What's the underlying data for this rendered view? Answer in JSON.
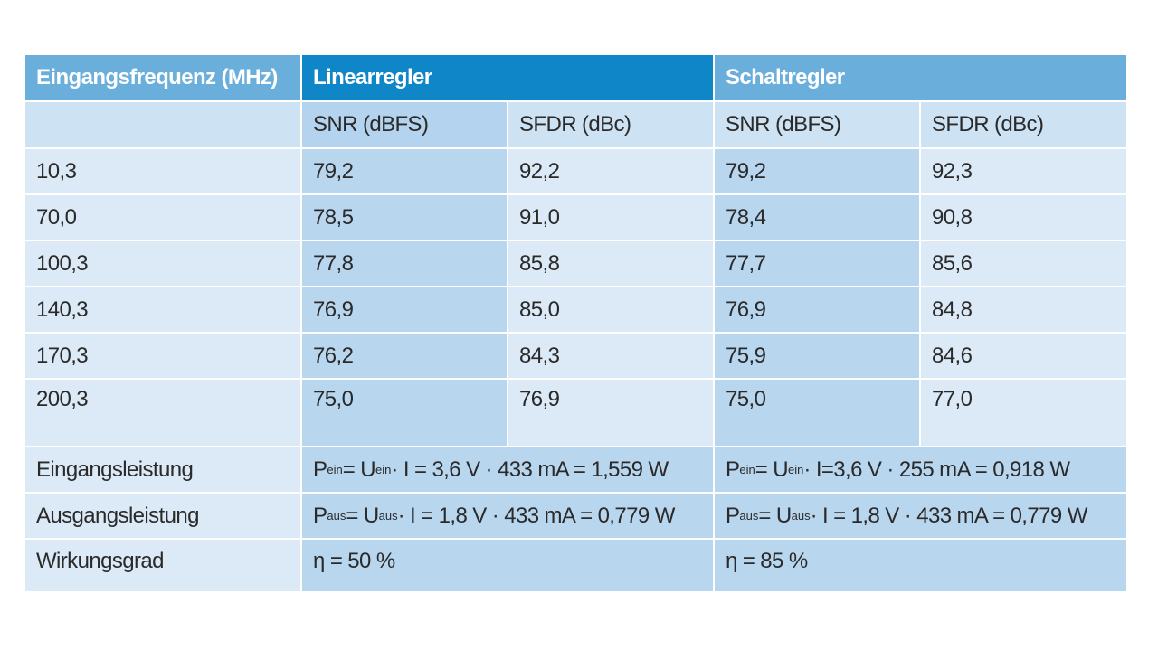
{
  "table": {
    "header": {
      "col1": "Eingangsfrequenz (MHz)",
      "group_linear": "Linearregler",
      "group_schalt": "Schaltregler"
    },
    "subheader": [
      "",
      "SNR (dBFS)",
      "SFDR (dBc)",
      "SNR (dBFS)",
      "SFDR (dBc)"
    ],
    "rows": [
      [
        "10,3",
        "79,2",
        "92,2",
        "79,2",
        "92,3"
      ],
      [
        "70,0",
        "78,5",
        "91,0",
        "78,4",
        "90,8"
      ],
      [
        "100,3",
        "77,8",
        "85,8",
        "77,7",
        "85,6"
      ],
      [
        "140,3",
        "76,9",
        "85,0",
        "76,9",
        "84,8"
      ],
      [
        "170,3",
        "76,2",
        "84,3",
        "75,9",
        "84,6"
      ],
      [
        "200,3",
        "75,0",
        "76,9",
        "75,0",
        "77,0"
      ]
    ],
    "power": {
      "eingang": {
        "label": "Eingangsleistung",
        "linear": {
          "p": "P",
          "p_sub": "ein",
          "u": " = U",
          "u_sub": "ein",
          "rest": " · I = 3,6 V · 433 mA = 1,559 W"
        },
        "schalt": {
          "p": "P",
          "p_sub": "ein",
          "u": " = U",
          "u_sub": "ein",
          "rest": " · I=3,6 V · 255 mA = 0,918 W"
        }
      },
      "ausgang": {
        "label": "Ausgangsleistung",
        "linear": {
          "p": "P",
          "p_sub": "aus",
          "u": " = U",
          "u_sub": "aus",
          "rest": " · I = 1,8 V · 433 mA = 0,779 W"
        },
        "schalt": {
          "p": "P",
          "p_sub": "aus",
          "u": " = U",
          "u_sub": "aus",
          "rest": " · I = 1,8 V · 433 mA = 0,779 W"
        }
      }
    },
    "efficiency": {
      "label": "Wirkungsgrad",
      "linear": "η = 50 %",
      "schalt": "η = 85 %"
    }
  }
}
